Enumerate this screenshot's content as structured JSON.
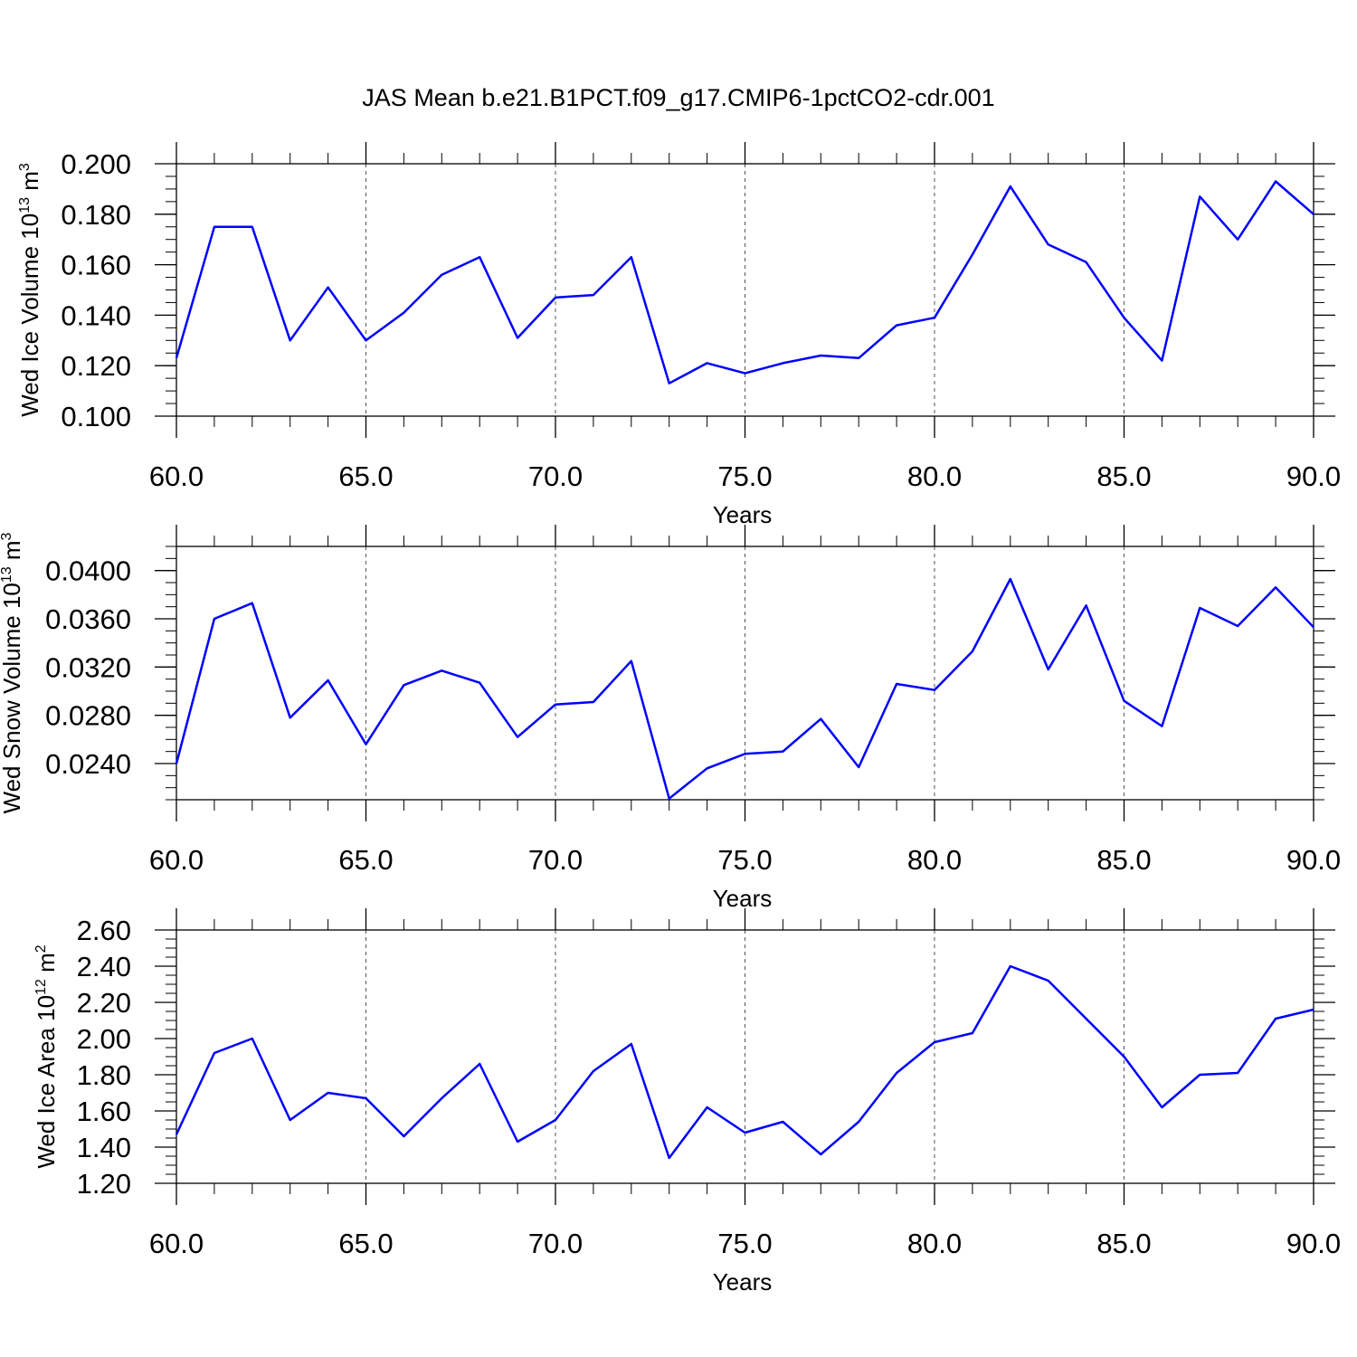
{
  "figure_title": "JAS Mean b.e21.B1PCT.f09_g17.CMIP6-1pctCO2-cdr.001",
  "colors": {
    "line": "#0000ff",
    "axes": "#000000",
    "grid": "#555555"
  },
  "chart_data": [
    {
      "type": "line",
      "ylabel": {
        "text": "Wed Ice Volume 10",
        "exp": "13",
        "unit": "m",
        "unit_exp": "3"
      },
      "xlabel": "Years",
      "xlim": [
        60,
        90
      ],
      "ylim": [
        0.1,
        0.2
      ],
      "xticks": [
        "60.0",
        "65.0",
        "70.0",
        "75.0",
        "80.0",
        "85.0",
        "90.0"
      ],
      "yticks": [
        "0.100",
        "0.120",
        "0.140",
        "0.160",
        "0.180",
        "0.200"
      ],
      "ytick_values": [
        0.1,
        0.12,
        0.14,
        0.16,
        0.18,
        0.2
      ],
      "ytop": 0.2,
      "yminor_step": 0.005,
      "grid": "vertical dashed",
      "x": [
        60,
        61,
        62,
        63,
        64,
        65,
        66,
        67,
        68,
        69,
        70,
        71,
        72,
        73,
        74,
        75,
        76,
        77,
        78,
        79,
        80,
        81,
        82,
        83,
        84,
        85,
        86,
        87,
        88,
        89,
        90
      ],
      "series": [
        {
          "values": [
            0.123,
            0.175,
            0.175,
            0.13,
            0.151,
            0.13,
            0.141,
            0.156,
            0.163,
            0.131,
            0.147,
            0.148,
            0.163,
            0.113,
            0.121,
            0.117,
            0.121,
            0.124,
            0.123,
            0.136,
            0.139,
            0.164,
            0.191,
            0.168,
            0.161,
            0.139,
            0.122,
            0.187,
            0.17,
            0.193,
            0.18
          ]
        }
      ]
    },
    {
      "type": "line",
      "ylabel": {
        "text": "Wed Snow Volume 10",
        "exp": "13",
        "unit": "m",
        "unit_exp": "3"
      },
      "xlabel": "Years",
      "xlim": [
        60,
        90
      ],
      "ylim": [
        0.021,
        0.042
      ],
      "xticks": [
        "60.0",
        "65.0",
        "70.0",
        "75.0",
        "80.0",
        "85.0",
        "90.0"
      ],
      "yticks": [
        "0.0240",
        "0.0280",
        "0.0320",
        "0.0360",
        "0.0400"
      ],
      "ytick_values": [
        0.024,
        0.028,
        0.032,
        0.036,
        0.04
      ],
      "ytop": 0.042,
      "yminor_step": 0.001,
      "grid": "vertical dashed",
      "x": [
        60,
        61,
        62,
        63,
        64,
        65,
        66,
        67,
        68,
        69,
        70,
        71,
        72,
        73,
        74,
        75,
        76,
        77,
        78,
        79,
        80,
        81,
        82,
        83,
        84,
        85,
        86,
        87,
        88,
        89,
        90
      ],
      "series": [
        {
          "values": [
            0.024,
            0.036,
            0.0373,
            0.0278,
            0.0309,
            0.0256,
            0.0305,
            0.0317,
            0.0307,
            0.0262,
            0.0289,
            0.0291,
            0.0325,
            0.0211,
            0.0236,
            0.0248,
            0.025,
            0.0277,
            0.0237,
            0.0306,
            0.0301,
            0.0333,
            0.0393,
            0.0318,
            0.0371,
            0.0292,
            0.0271,
            0.0369,
            0.0354,
            0.0386,
            0.0353
          ]
        }
      ]
    },
    {
      "type": "line",
      "ylabel": {
        "text": "Wed Ice Area 10",
        "exp": "12",
        "unit": "m",
        "unit_exp": "2"
      },
      "xlabel": "Years",
      "xlim": [
        60,
        90
      ],
      "ylim": [
        1.2,
        2.6
      ],
      "xticks": [
        "60.0",
        "65.0",
        "70.0",
        "75.0",
        "80.0",
        "85.0",
        "90.0"
      ],
      "yticks": [
        "1.20",
        "1.40",
        "1.60",
        "1.80",
        "2.00",
        "2.20",
        "2.40",
        "2.60"
      ],
      "ytick_values": [
        1.2,
        1.4,
        1.6,
        1.8,
        2.0,
        2.2,
        2.4,
        2.6
      ],
      "ytop": 2.6,
      "yminor_step": 0.05,
      "grid": "vertical dashed",
      "x": [
        60,
        61,
        62,
        63,
        64,
        65,
        66,
        67,
        68,
        69,
        70,
        71,
        72,
        73,
        74,
        75,
        76,
        77,
        78,
        79,
        80,
        81,
        82,
        83,
        84,
        85,
        86,
        87,
        88,
        89,
        90
      ],
      "series": [
        {
          "values": [
            1.47,
            1.92,
            2.0,
            1.55,
            1.7,
            1.67,
            1.46,
            1.67,
            1.86,
            1.43,
            1.55,
            1.82,
            1.97,
            1.34,
            1.62,
            1.48,
            1.54,
            1.36,
            1.54,
            1.81,
            1.98,
            2.03,
            2.4,
            2.32,
            2.11,
            1.9,
            1.62,
            1.8,
            1.81,
            2.11,
            2.16
          ]
        }
      ]
    }
  ]
}
